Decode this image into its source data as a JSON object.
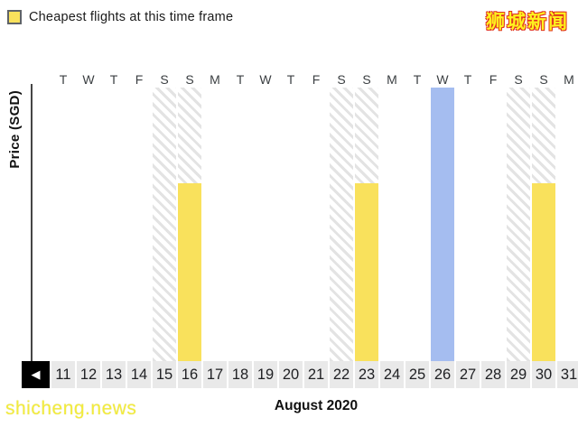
{
  "header": {
    "legend_label": "Cheapest flights at this time frame",
    "watermark_top_right": "狮城新闻"
  },
  "chart_data": {
    "type": "bar",
    "title": "Cheapest flights at this time frame",
    "xlabel": "August 2020",
    "ylabel": "Price (SGD)",
    "y_ticks": [],
    "grid": false,
    "legend_position": "top-left",
    "legend": [
      {
        "label": "Cheapest flights at this time frame",
        "color": "#F9E15C"
      }
    ],
    "categories": [
      11,
      12,
      13,
      14,
      15,
      16,
      17,
      18,
      19,
      20,
      21,
      22,
      23,
      24,
      25,
      26,
      27,
      28,
      29,
      30,
      31
    ],
    "weekdays": [
      "T",
      "W",
      "T",
      "F",
      "S",
      "S",
      "M",
      "T",
      "W",
      "T",
      "F",
      "S",
      "S",
      "M",
      "T",
      "W",
      "T",
      "F",
      "S",
      "S",
      "M"
    ],
    "bars": [
      {
        "day": 15,
        "weekday": "S",
        "kind": "weekend-hatched",
        "rel_height": 1.0
      },
      {
        "day": 16,
        "weekday": "S",
        "kind": "weekend-hatched",
        "rel_height": 1.0
      },
      {
        "day": 16,
        "weekday": "S",
        "kind": "cheapest",
        "rel_height": 0.65
      },
      {
        "day": 22,
        "weekday": "S",
        "kind": "weekend-hatched",
        "rel_height": 1.0
      },
      {
        "day": 23,
        "weekday": "S",
        "kind": "weekend-hatched",
        "rel_height": 1.0
      },
      {
        "day": 23,
        "weekday": "S",
        "kind": "cheapest",
        "rel_height": 0.65
      },
      {
        "day": 26,
        "weekday": "W",
        "kind": "highlighted",
        "rel_height": 1.0
      },
      {
        "day": 29,
        "weekday": "S",
        "kind": "weekend-hatched",
        "rel_height": 1.0
      },
      {
        "day": 30,
        "weekday": "S",
        "kind": "weekend-hatched",
        "rel_height": 1.0
      },
      {
        "day": 30,
        "weekday": "S",
        "kind": "cheapest",
        "rel_height": 0.65
      }
    ],
    "notes": "No numeric y-axis tick labels shown; bar heights relative to full plot height. Hatched bands mark weekend days, yellow bars mark cheapest flights, blue bar marks day 26."
  },
  "footer": {
    "month_label": "August 2020",
    "prev_button_glyph": "◀",
    "watermark_bottom_left": "shicheng.news"
  },
  "colors": {
    "cheapest_bar": "#F9E15C",
    "highlighted_bar": "#A5BDF0",
    "hatch_stripe": "#E3E3E3",
    "date_cell_bg": "#E9E9E9",
    "axis": "#464646",
    "text": "#202124",
    "watermark_yellow": "#FFF21E",
    "watermark_red": "#E0301E",
    "watermark_site": "#F2EC3C"
  }
}
